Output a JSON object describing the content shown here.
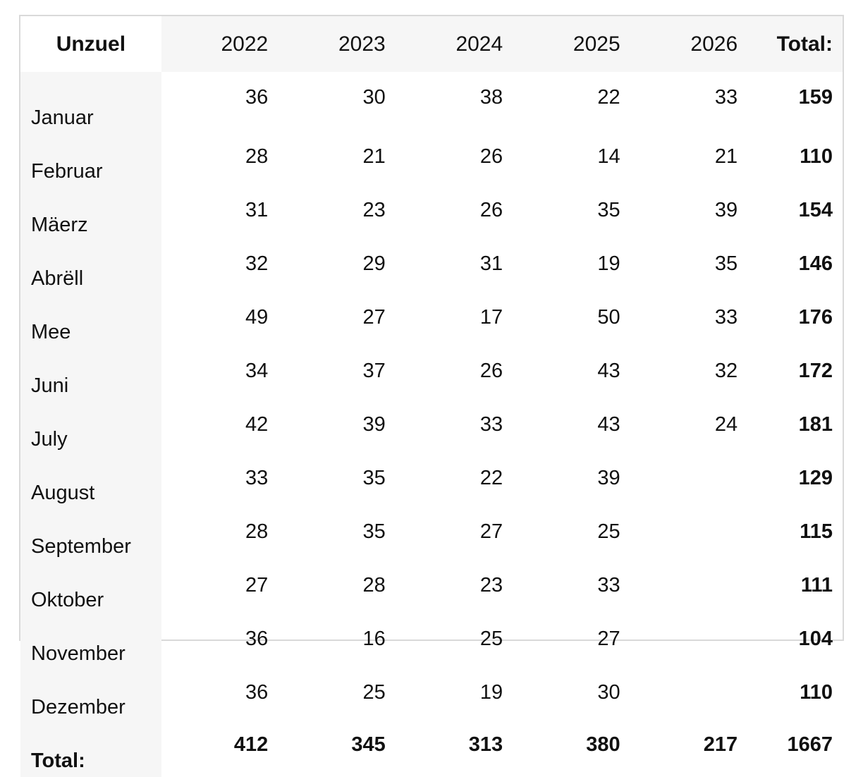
{
  "chart_data": {
    "type": "table",
    "header": {
      "label": "Unzuel",
      "years": [
        "2022",
        "2023",
        "2024",
        "2025",
        "2026"
      ],
      "total": "Total:"
    },
    "rows": [
      {
        "label": "Januar",
        "values": [
          "36",
          "30",
          "38",
          "22",
          "33"
        ],
        "total": "159"
      },
      {
        "label": "Februar",
        "values": [
          "28",
          "21",
          "26",
          "14",
          "21"
        ],
        "total": "110"
      },
      {
        "label": "Mäerz",
        "values": [
          "31",
          "23",
          "26",
          "35",
          "39"
        ],
        "total": "154"
      },
      {
        "label": "Abrëll",
        "values": [
          "32",
          "29",
          "31",
          "19",
          "35"
        ],
        "total": "146"
      },
      {
        "label": "Mee",
        "values": [
          "49",
          "27",
          "17",
          "50",
          "33"
        ],
        "total": "176"
      },
      {
        "label": "Juni",
        "values": [
          "34",
          "37",
          "26",
          "43",
          "32"
        ],
        "total": "172"
      },
      {
        "label": "July",
        "values": [
          "42",
          "39",
          "33",
          "43",
          "24"
        ],
        "total": "181"
      },
      {
        "label": "August",
        "values": [
          "33",
          "35",
          "22",
          "39",
          ""
        ],
        "total": "129"
      },
      {
        "label": "September",
        "values": [
          "28",
          "35",
          "27",
          "25",
          ""
        ],
        "total": "115"
      },
      {
        "label": "Oktober",
        "values": [
          "27",
          "28",
          "23",
          "33",
          ""
        ],
        "total": "111"
      },
      {
        "label": "November",
        "values": [
          "36",
          "16",
          "25",
          "27",
          ""
        ],
        "total": "104"
      },
      {
        "label": "Dezember",
        "values": [
          "36",
          "25",
          "19",
          "30",
          ""
        ],
        "total": "110"
      }
    ],
    "footer": {
      "label": "Total:",
      "values": [
        "412",
        "345",
        "313",
        "380",
        "217"
      ],
      "total": "1667"
    }
  }
}
